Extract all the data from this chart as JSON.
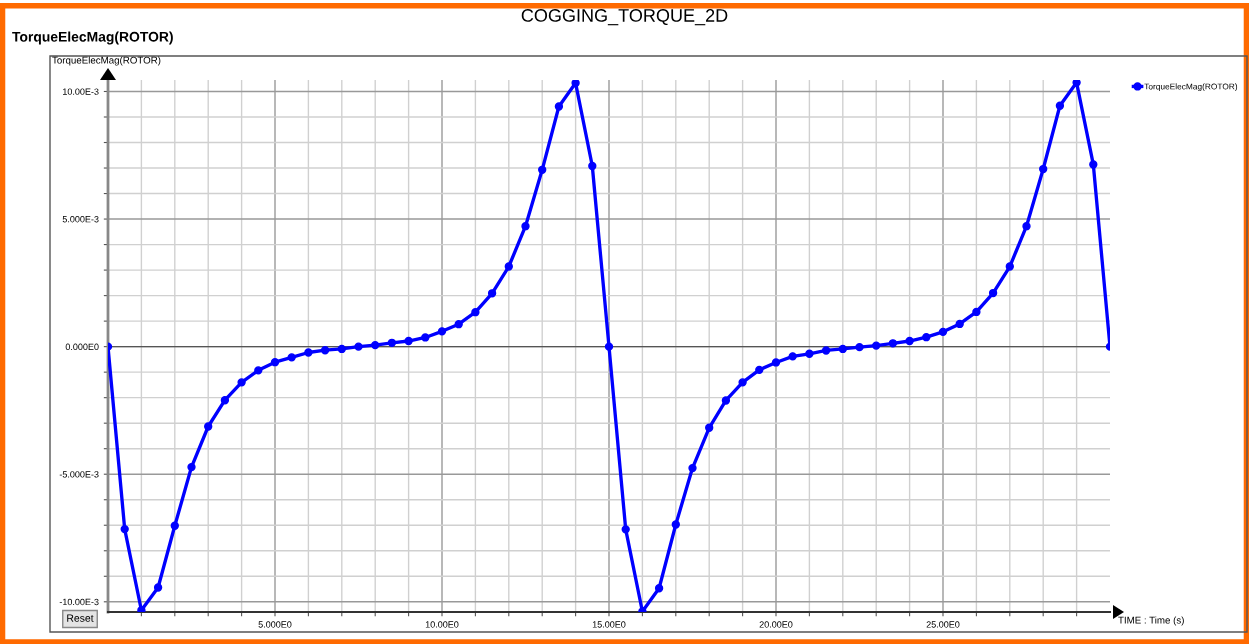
{
  "chart_data": {
    "type": "line",
    "title": "COGGING_TORQUE_2D",
    "subtitle": "TorqueElecMag(ROTOR)",
    "ylabel": "TorqueElecMag(ROTOR)",
    "xlabel": "TIME : Time (s)",
    "annotations": [
      "Reset"
    ],
    "x": [
      0,
      0.5,
      1,
      1.5,
      2,
      2.5,
      3,
      3.5,
      4,
      4.5,
      5,
      5.5,
      6,
      6.5,
      7,
      7.5,
      8,
      8.5,
      9,
      9.5,
      10,
      10.5,
      11,
      11.5,
      12,
      12.5,
      13,
      13.5,
      14,
      14.5,
      15,
      15.5,
      16,
      16.5,
      17,
      17.5,
      18,
      18.5,
      19,
      19.5,
      20,
      20.5,
      21,
      21.5,
      22,
      22.5,
      23,
      23.5,
      24,
      24.5,
      25,
      25.5,
      26,
      26.5,
      27,
      27.5,
      28,
      28.5,
      29,
      29.5,
      30
    ],
    "series": [
      {
        "name": "TorqueElecMag(ROTOR)",
        "color": "#0000ff",
        "values": [
          0,
          -0.00715,
          -0.01033,
          -0.00944,
          -0.00702,
          -0.00472,
          -0.00313,
          -0.0021,
          -0.0014,
          -0.00093,
          -0.00061,
          -0.00042,
          -0.00023,
          -0.00014,
          -9e-05,
          0,
          6e-05,
          0.00015,
          0.00022,
          0.00036,
          0.0006,
          0.00088,
          0.00135,
          0.00209,
          0.00314,
          0.00472,
          0.00693,
          0.00941,
          0.01033,
          0.00708,
          0,
          -0.00716,
          -0.01038,
          -0.00947,
          -0.00697,
          -0.00476,
          -0.00318,
          -0.00211,
          -0.0014,
          -0.00091,
          -0.00062,
          -0.00038,
          -0.00028,
          -0.00015,
          -9e-05,
          -2e-05,
          4e-05,
          0.00013,
          0.00022,
          0.00037,
          0.00058,
          0.00089,
          0.00136,
          0.0021,
          0.00314,
          0.00472,
          0.00696,
          0.00944,
          0.01035,
          0.00714,
          0
        ]
      }
    ],
    "xlim": [
      0,
      30
    ],
    "ylim": [
      -0.0104,
      0.01045
    ],
    "xticks": [
      {
        "value": 1,
        "label": null
      },
      {
        "value": 2,
        "label": null
      },
      {
        "value": 3,
        "label": null
      },
      {
        "value": 4,
        "label": null
      },
      {
        "value": 5,
        "label": "5.000E0"
      },
      {
        "value": 6,
        "label": null
      },
      {
        "value": 7,
        "label": null
      },
      {
        "value": 8,
        "label": null
      },
      {
        "value": 9,
        "label": null
      },
      {
        "value": 10,
        "label": "10.00E0"
      },
      {
        "value": 11,
        "label": null
      },
      {
        "value": 12,
        "label": null
      },
      {
        "value": 13,
        "label": null
      },
      {
        "value": 14,
        "label": null
      },
      {
        "value": 15,
        "label": "15.00E0"
      },
      {
        "value": 16,
        "label": null
      },
      {
        "value": 17,
        "label": null
      },
      {
        "value": 18,
        "label": null
      },
      {
        "value": 19,
        "label": null
      },
      {
        "value": 20,
        "label": "20.00E0"
      },
      {
        "value": 21,
        "label": null
      },
      {
        "value": 22,
        "label": null
      },
      {
        "value": 23,
        "label": null
      },
      {
        "value": 24,
        "label": null
      },
      {
        "value": 25,
        "label": "25.00E0"
      },
      {
        "value": 26,
        "label": null
      },
      {
        "value": 27,
        "label": null
      },
      {
        "value": 28,
        "label": null
      },
      {
        "value": 29,
        "label": null
      }
    ],
    "yticks": [
      {
        "value": -0.01,
        "label": "-10.00E-3"
      },
      {
        "value": -0.009,
        "label": null
      },
      {
        "value": -0.008,
        "label": null
      },
      {
        "value": -0.007,
        "label": null
      },
      {
        "value": -0.006,
        "label": null
      },
      {
        "value": -0.005,
        "label": "-5.000E-3"
      },
      {
        "value": -0.004,
        "label": null
      },
      {
        "value": -0.003,
        "label": null
      },
      {
        "value": -0.002,
        "label": null
      },
      {
        "value": -0.001,
        "label": null
      },
      {
        "value": 0,
        "label": "0.000E0"
      },
      {
        "value": 0.001,
        "label": null
      },
      {
        "value": 0.002,
        "label": null
      },
      {
        "value": 0.003,
        "label": null
      },
      {
        "value": 0.004,
        "label": null
      },
      {
        "value": 0.005,
        "label": "5.000E-3"
      },
      {
        "value": 0.006,
        "label": null
      },
      {
        "value": 0.007,
        "label": null
      },
      {
        "value": 0.008,
        "label": null
      },
      {
        "value": 0.009,
        "label": null
      },
      {
        "value": 0.01,
        "label": "10.00E-3"
      }
    ],
    "grid": true,
    "legend": "top right",
    "marker": "circle",
    "line_style": "solid"
  }
}
